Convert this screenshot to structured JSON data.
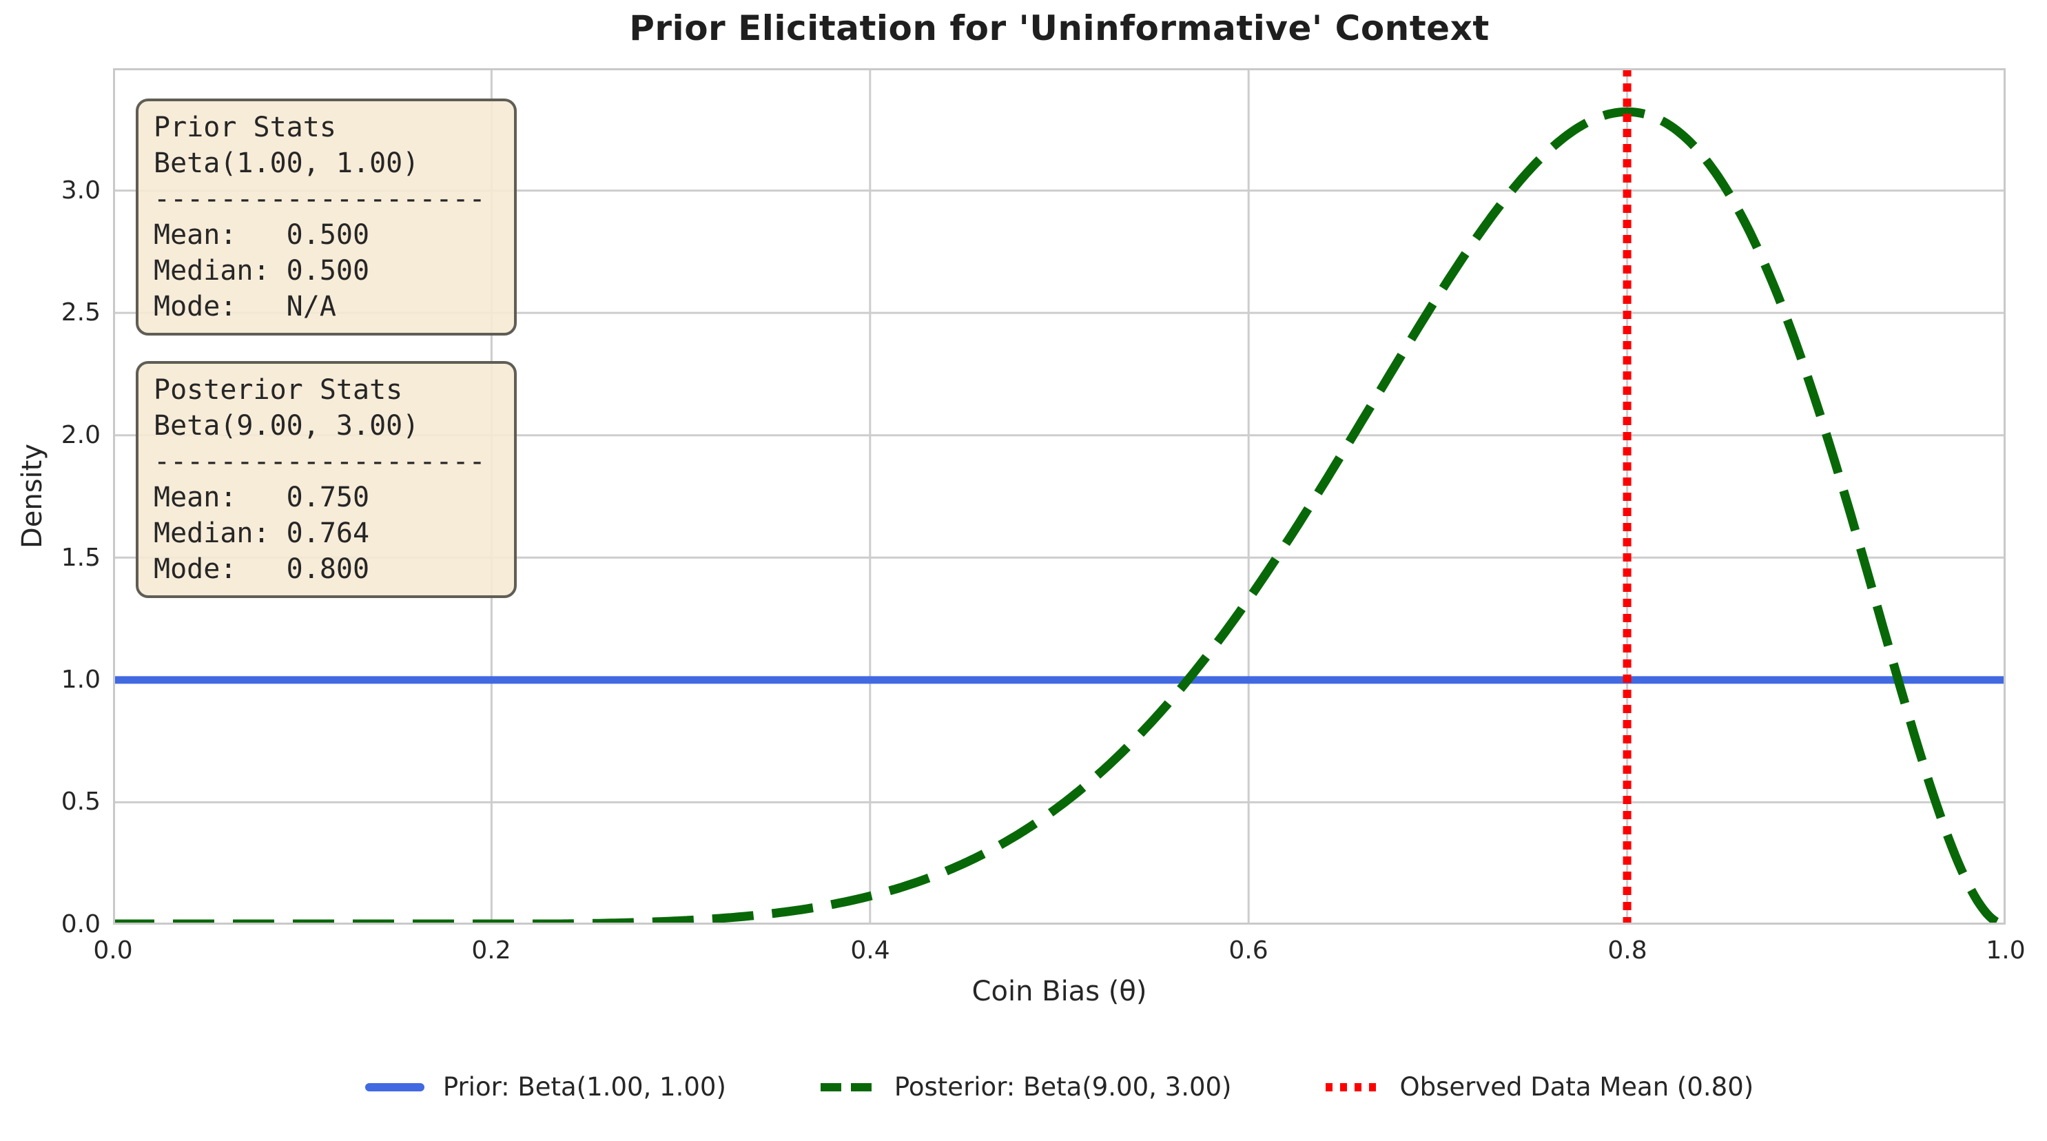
{
  "title": "Prior Elicitation for 'Uninformative' Context",
  "axes": {
    "xlabel": "Coin Bias (θ)",
    "ylabel": "Density",
    "x_tick_labels": [
      "0.0",
      "0.2",
      "0.4",
      "0.6",
      "0.8",
      "1.0"
    ],
    "y_tick_labels": [
      "0.0",
      "0.5",
      "1.0",
      "1.5",
      "2.0",
      "2.5",
      "3.0"
    ]
  },
  "stat_boxes": [
    {
      "name": "prior",
      "lines": [
        "Prior Stats",
        "Beta(1.00, 1.00)",
        "--------------------",
        "Mean:   0.500",
        "Median: 0.500",
        "Mode:   N/A"
      ]
    },
    {
      "name": "posterior",
      "lines": [
        "Posterior Stats",
        "Beta(9.00, 3.00)",
        "--------------------",
        "Mean:   0.750",
        "Median: 0.764",
        "Mode:   0.800"
      ]
    }
  ],
  "legend": {
    "items": [
      {
        "label": "Prior: Beta(1.00, 1.00)",
        "color": "#4169E1",
        "line_style": "solid"
      },
      {
        "label": "Posterior: Beta(9.00, 3.00)",
        "color": "#086808",
        "line_style": "dashed"
      },
      {
        "label": "Observed Data Mean (0.80)",
        "color": "#FF0000",
        "line_style": "dotted"
      }
    ]
  },
  "chart_data": {
    "type": "line",
    "title": "Prior Elicitation for 'Uninformative' Context",
    "xlabel": "Coin Bias (θ)",
    "ylabel": "Density",
    "xlim": [
      0,
      1
    ],
    "ylim": [
      0,
      3.5
    ],
    "grid": true,
    "legend_position": "lower center, below axes",
    "grid_color": "#cdcdcd",
    "spine_color": "#c9c9c9",
    "x_ticks": [
      0,
      0.2,
      0.4,
      0.6,
      0.8,
      1.0
    ],
    "y_ticks": [
      0,
      0.5,
      1.0,
      1.5,
      2.0,
      2.5,
      3.0
    ],
    "series": [
      {
        "name": "Prior: Beta(1.00, 1.00)",
        "distribution": "beta",
        "beta_params": [
          1,
          1
        ],
        "color": "#4169E1",
        "line_style": "solid",
        "x": [
          0,
          0.25,
          0.5,
          0.75,
          1.0
        ],
        "y": [
          1.0,
          1.0,
          1.0,
          1.0,
          1.0
        ]
      },
      {
        "name": "Posterior: Beta(9.00, 3.00)",
        "distribution": "beta",
        "beta_params": [
          9,
          3
        ],
        "color": "#086808",
        "line_style": "dashed",
        "x": [
          0,
          0.05,
          0.1,
          0.15,
          0.2,
          0.25,
          0.3,
          0.35,
          0.4,
          0.45,
          0.5,
          0.55,
          0.6,
          0.65,
          0.7,
          0.75,
          0.8,
          0.85,
          0.9,
          0.95,
          1.0
        ],
        "y": [
          0,
          0,
          0,
          0,
          0.001,
          0.004,
          0.016,
          0.047,
          0.117,
          0.252,
          0.483,
          0.839,
          1.33,
          1.932,
          2.568,
          3.097,
          3.322,
          3.035,
          2.131,
          0.821,
          0
        ]
      }
    ],
    "vline": {
      "x": 0.8,
      "color": "#FF0000",
      "line_style": "dotted",
      "label": "Observed Data Mean (0.80)"
    },
    "peak": {
      "x": 0.8,
      "y": 3.322
    }
  }
}
